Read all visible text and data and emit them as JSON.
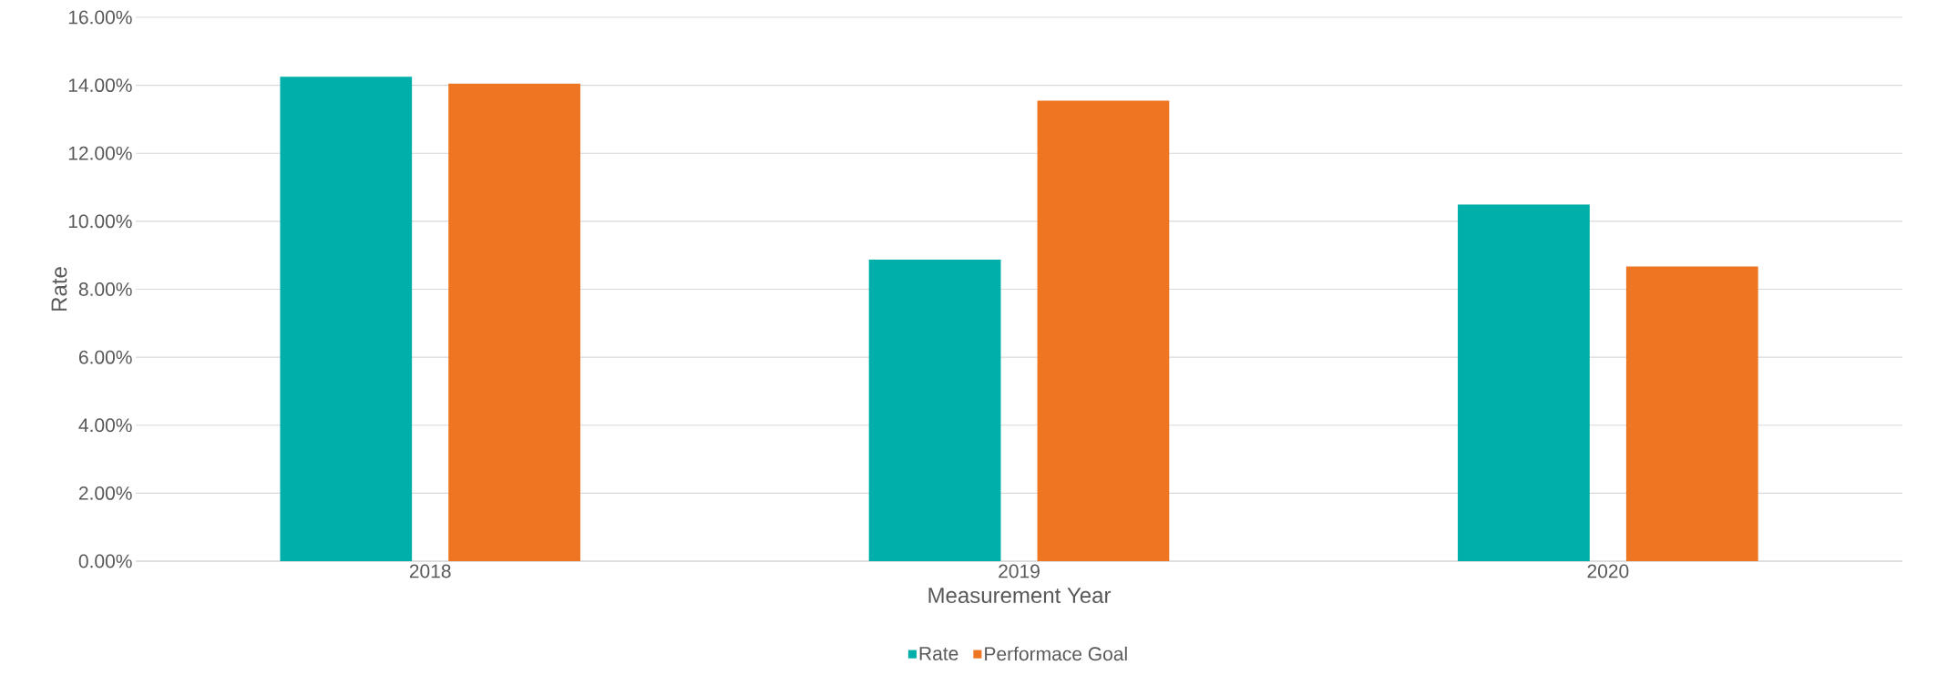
{
  "chart_data": {
    "type": "bar",
    "xlabel": "Measurement Year",
    "ylabel": "Rate",
    "categories": [
      "2018",
      "2019",
      "2020"
    ],
    "series": [
      {
        "name": "Rate",
        "color": "#00afa9",
        "values": [
          14.25,
          8.87,
          10.49
        ]
      },
      {
        "name": "Performace Goal",
        "color": "#ee7623",
        "values": [
          14.05,
          13.55,
          8.67
        ]
      }
    ],
    "ylim": [
      0,
      16
    ],
    "yticks": [
      {
        "value": 0,
        "label": "0.00%"
      },
      {
        "value": 2,
        "label": "2.00%"
      },
      {
        "value": 4,
        "label": "4.00%"
      },
      {
        "value": 6,
        "label": "6.00%"
      },
      {
        "value": 8,
        "label": "8.00%"
      },
      {
        "value": 10,
        "label": "10.00%"
      },
      {
        "value": 12,
        "label": "12.00%"
      },
      {
        "value": 14,
        "label": "14.00%"
      },
      {
        "value": 16,
        "label": "16.00%"
      }
    ],
    "grid": "y",
    "legend": "bottom"
  }
}
